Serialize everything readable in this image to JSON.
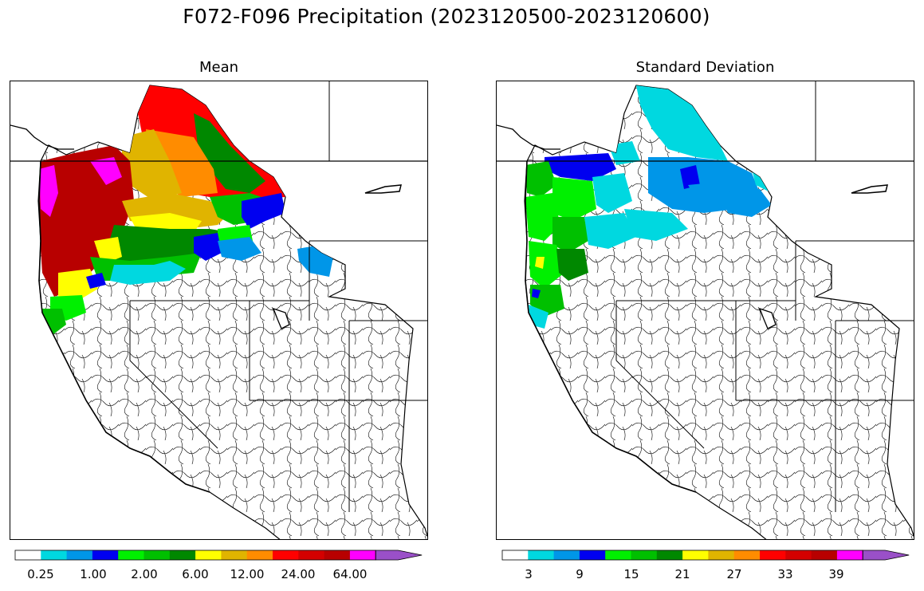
{
  "figure": {
    "title": "F072-F096 Precipitation (2023120500-2023120600)"
  },
  "panels": [
    {
      "title": "Mean",
      "colorbar": {
        "colors": [
          "#ffffff",
          "#00d8e0",
          "#0096e8",
          "#0000f0",
          "#00f000",
          "#00c000",
          "#008800",
          "#ffff00",
          "#e0b400",
          "#ff8c00",
          "#ff0000",
          "#d40000",
          "#b80000",
          "#ff00ff",
          "#9a50c8"
        ],
        "tick_labels": [
          "0.25",
          "1.00",
          "2.00",
          "6.00",
          "12.00",
          "24.00",
          "64.00"
        ]
      }
    },
    {
      "title": "Standard Deviation",
      "colorbar": {
        "colors": [
          "#ffffff",
          "#00d8e0",
          "#0096e8",
          "#0000f0",
          "#00f000",
          "#00c000",
          "#008800",
          "#ffff00",
          "#e0b400",
          "#ff8c00",
          "#ff0000",
          "#d40000",
          "#b80000",
          "#ff00ff",
          "#9a50c8"
        ],
        "tick_labels": [
          "3",
          "9",
          "15",
          "21",
          "27",
          "33",
          "39"
        ]
      }
    }
  ]
}
